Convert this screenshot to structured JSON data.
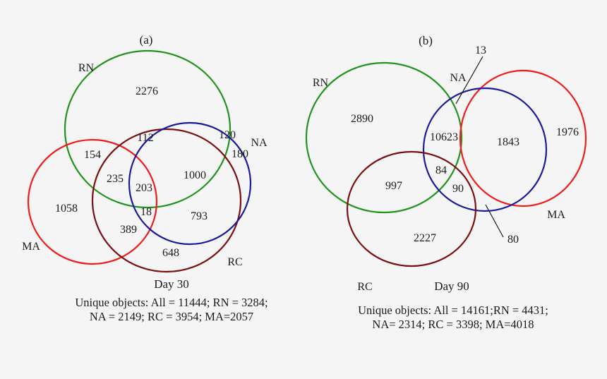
{
  "colors": {
    "rn": "#22941e",
    "na": "#1a1a9e",
    "rc": "#7a1010",
    "ma": "#f01c1c",
    "text": "#1a1a1a",
    "background": "#f5f5f5"
  },
  "panel_a": {
    "label": "(a)",
    "day": "Day 30",
    "sets": {
      "rn": "RN",
      "na": "NA",
      "rc": "RC",
      "ma": "MA"
    },
    "counts": {
      "rn_only": "2276",
      "rn_rc": "112",
      "rn_rc_na_upper": "120",
      "na_only": "180",
      "rn_ma": "154",
      "rn_ma_rc": "235",
      "rn_rc_na": "1000",
      "all_four": "203",
      "ma_rc_na": "18",
      "ma_only": "1058",
      "ma_rc": "389",
      "rc_na": "793",
      "rc_only": "648"
    },
    "caption_line1": "Unique objects: All = 11444; RN = 3284;",
    "caption_line2": "NA = 2149; RC = 3954; MA=2057"
  },
  "panel_b": {
    "label": "(b)",
    "day": "Day 90",
    "sets": {
      "rn": "RN",
      "na": "NA",
      "rc": "RC",
      "ma": "MA"
    },
    "counts": {
      "callout_top": "13",
      "rn_only": "2890",
      "rn_na": "10623",
      "na_ma": "1843",
      "ma_only": "1976",
      "rn_na_rc": "84",
      "rn_rc": "997",
      "na_ma_rc": "90",
      "callout_bottom": "80",
      "rc_only": "2227"
    },
    "caption_line1": "Unique objects: All = 14161;RN = 4431;",
    "caption_line2": "NA= 2314; RC = 3398; MA=4018"
  }
}
